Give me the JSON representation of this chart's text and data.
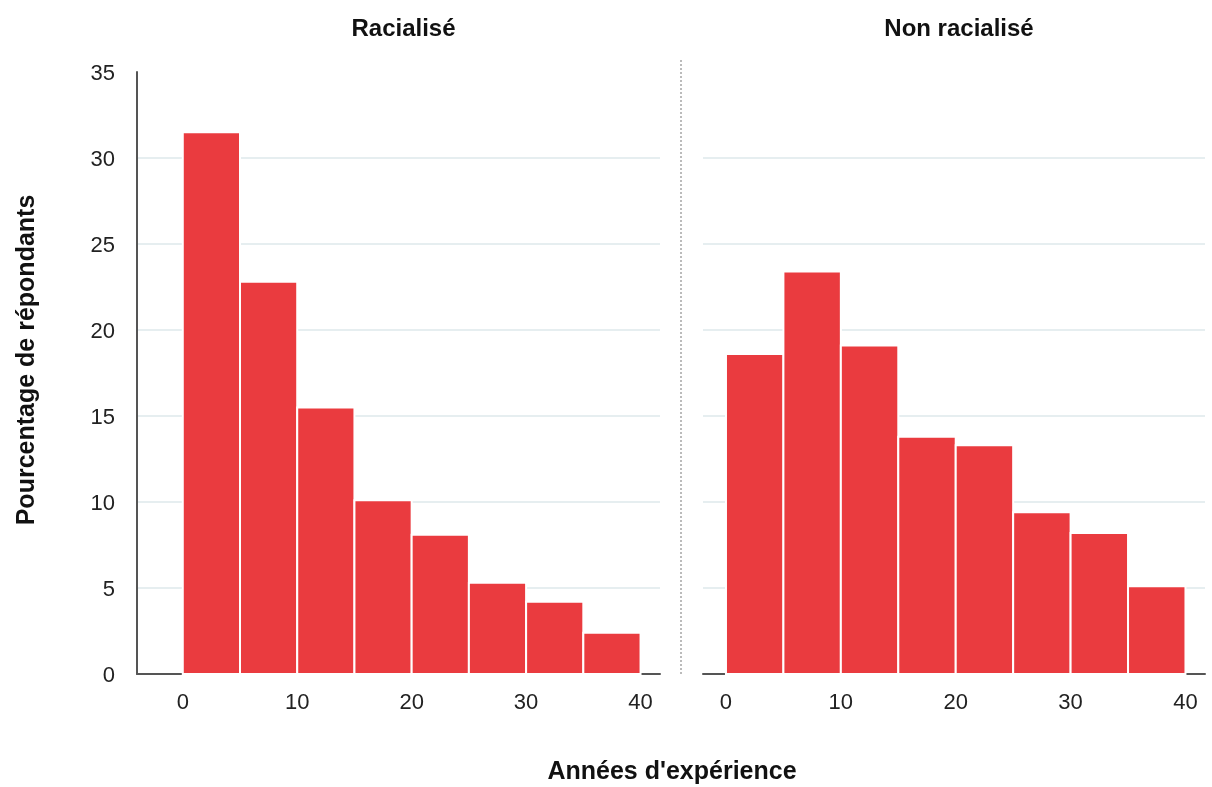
{
  "chart_data": [
    {
      "type": "histogram",
      "title": "Racialisé",
      "xlabel": "Années d'expérience",
      "ylabel": "Pourcentage de répondants",
      "bins": [
        0,
        5,
        10,
        15,
        20,
        25,
        30,
        35,
        40
      ],
      "values": [
        31.5,
        22.8,
        15.5,
        10.1,
        8.1,
        5.3,
        4.2,
        2.4
      ],
      "color": "#ea3b3f",
      "xlim": [
        -4,
        41.7
      ],
      "xticks": [
        0,
        10,
        20,
        30,
        40
      ],
      "ylim": [
        0,
        35
      ],
      "yticks": [
        0,
        5,
        10,
        15,
        20,
        25,
        30,
        35
      ],
      "grid": "y"
    },
    {
      "type": "histogram",
      "title": "Non racialisé",
      "bins": [
        0,
        5,
        10,
        15,
        20,
        25,
        30,
        35,
        40
      ],
      "values": [
        18.6,
        23.4,
        19.1,
        13.8,
        13.3,
        9.4,
        8.2,
        5.1
      ],
      "color": "#ea3b3f",
      "xlim": [
        -2,
        41.7
      ],
      "xticks": [
        0,
        10,
        20,
        30,
        40
      ],
      "ylim": [
        0,
        35
      ],
      "yticks": [
        0,
        5,
        10,
        15,
        20,
        25,
        30,
        35
      ],
      "grid": "y",
      "tick_labels": "x"
    }
  ]
}
